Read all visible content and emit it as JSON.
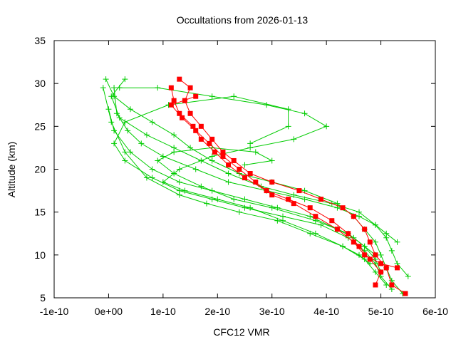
{
  "chart_data": {
    "type": "line",
    "title": "Occultations from 2026-01-13",
    "xlabel": "CFC12 VMR",
    "ylabel": "Altitude (km)",
    "xlim": [
      -1e-10,
      6e-10
    ],
    "ylim": [
      5,
      35
    ],
    "x_ticks": [
      {
        "value": -1e-10,
        "label": "-1e-10"
      },
      {
        "value": 0,
        "label": "0e+00"
      },
      {
        "value": 1e-10,
        "label": "1e-10"
      },
      {
        "value": 2e-10,
        "label": "2e-10"
      },
      {
        "value": 3e-10,
        "label": "3e-10"
      },
      {
        "value": 4e-10,
        "label": "4e-10"
      },
      {
        "value": 5e-10,
        "label": "5e-10"
      },
      {
        "value": 6e-10,
        "label": "6e-10"
      }
    ],
    "y_ticks": [
      {
        "value": 5,
        "label": "5"
      },
      {
        "value": 10,
        "label": "10"
      },
      {
        "value": 15,
        "label": "15"
      },
      {
        "value": 20,
        "label": "20"
      },
      {
        "value": 25,
        "label": "25"
      },
      {
        "value": 30,
        "label": "30"
      },
      {
        "value": 35,
        "label": "35"
      }
    ],
    "colors": {
      "green": "#00cc00",
      "red": "#ff0000",
      "axis": "#000000"
    },
    "series": [
      {
        "name": "profile-1",
        "color": "green",
        "marker": "plus",
        "x": [
          5.4e-10,
          5.2e-10,
          5.1e-10,
          5e-10,
          4.9e-10,
          4.7e-10,
          4.5e-10,
          4.2e-10,
          3.6e-10,
          3e-10,
          2.4e-10,
          1.9e-10,
          1.5e-10,
          1.2e-10,
          8e-11,
          4e-11,
          1e-11,
          -5e-12
        ],
        "y": [
          5.5,
          7,
          8.5,
          10,
          11.5,
          13,
          14.5,
          16,
          17.5,
          18.5,
          19.5,
          21,
          22.5,
          24,
          25.5,
          27,
          28.5,
          30.5
        ]
      },
      {
        "name": "profile-2",
        "color": "green",
        "marker": "plus",
        "x": [
          5.5e-10,
          5.3e-10,
          5.2e-10,
          5.1e-10,
          4.9e-10,
          4.6e-10,
          4.1e-10,
          3.4e-10,
          2.8e-10,
          2.2e-10,
          1.7e-10,
          1.2e-10,
          7e-11,
          2e-11,
          5e-12,
          3e-11
        ],
        "y": [
          7.5,
          9,
          10.5,
          12,
          13.5,
          15,
          16,
          17,
          18,
          19.5,
          21,
          22.5,
          24,
          26,
          28.5,
          30.5
        ]
      },
      {
        "name": "profile-3",
        "color": "green",
        "marker": "plus",
        "x": [
          5.2e-10,
          5e-10,
          4.9e-10,
          4.7e-10,
          4.4e-10,
          3.9e-10,
          3.2e-10,
          2.5e-10,
          1.9e-10,
          1.3e-10,
          8e-11,
          3e-11,
          1e-11,
          3e-11,
          1.1e-10,
          2.3e-10,
          3.3e-10,
          3.3e-10,
          2.6e-10
        ],
        "y": [
          6,
          7.5,
          9,
          10.5,
          12,
          13.5,
          14.5,
          15.5,
          16.5,
          17.5,
          19,
          21,
          23,
          25.5,
          27.5,
          28.5,
          27,
          25,
          23
        ]
      },
      {
        "name": "profile-4",
        "color": "green",
        "marker": "plus",
        "x": [
          5e-10,
          4.9e-10,
          4.7e-10,
          4.4e-10,
          3.8e-10,
          3e-10,
          2.3e-10,
          1.7e-10,
          1.2e-10,
          9e-11,
          1.2e-10,
          1.9e-10,
          2.7e-10,
          3e-10,
          2.5e-10
        ],
        "y": [
          8,
          9.5,
          11,
          12.5,
          14,
          15.5,
          16.5,
          18,
          19.5,
          21,
          22,
          22.5,
          22,
          21,
          20.5
        ]
      },
      {
        "name": "profile-5",
        "color": "green",
        "marker": "plus",
        "x": [
          5.3e-10,
          5.1e-10,
          4.9e-10,
          4.6e-10,
          4.2e-10,
          3.6e-10,
          2.9e-10,
          2.2e-10,
          1.6e-10,
          1e-10,
          6e-11,
          3.5e-11,
          1.5e-11,
          1e-11
        ],
        "y": [
          11.5,
          12.5,
          13.5,
          14.5,
          15.5,
          16.5,
          17.5,
          18.5,
          20,
          21.5,
          23,
          24.5,
          26.5,
          29.5
        ]
      },
      {
        "name": "profile-6",
        "color": "green",
        "marker": "plus",
        "x": [
          4.8e-10,
          4.6e-10,
          4.3e-10,
          3.8e-10,
          3.2e-10,
          2.6e-10,
          2e-10,
          1.4e-10,
          1e-10,
          1.3e-10,
          1.9e-10,
          2.6e-10,
          3.4e-10,
          4e-10,
          3.6e-10,
          2.9e-10,
          1.9e-10,
          9e-11,
          2e-11
        ],
        "y": [
          9,
          10,
          11,
          12.5,
          14,
          15.5,
          16.5,
          17.5,
          18.5,
          20,
          21.5,
          22.5,
          23.5,
          25,
          26.5,
          27.5,
          28.5,
          29.5,
          29.5
        ]
      },
      {
        "name": "profile-7",
        "color": "green",
        "marker": "plus",
        "x": [
          4.9e-10,
          4.7e-10,
          4.5e-10,
          4.2e-10,
          3.7e-10,
          3.1e-10,
          2.5e-10,
          1.9e-10,
          1.3e-10,
          8e-11,
          4e-11,
          1e-11,
          0.0
        ],
        "y": [
          10,
          11,
          12,
          13,
          14.5,
          15.5,
          16.5,
          17.5,
          18.5,
          20,
          22,
          24.5,
          27
        ]
      },
      {
        "name": "profile-8",
        "color": "green",
        "marker": "plus",
        "x": [
          5.1e-10,
          4.9e-10,
          4.7e-10,
          4.3e-10,
          3.7e-10,
          3.1e-10,
          2.4e-10,
          1.8e-10,
          1.3e-10,
          7e-11,
          3e-11,
          5e-12,
          -1e-11
        ],
        "y": [
          6.5,
          8,
          9.5,
          11,
          12.5,
          14,
          15,
          16,
          17,
          19,
          22,
          25.5,
          29.5
        ]
      },
      {
        "name": "profile-red-1",
        "color": "red",
        "marker": "square",
        "x": [
          5.45e-10,
          5.2e-10,
          5.1e-10,
          4.9e-10,
          4.8e-10,
          4.7e-10,
          4.5e-10,
          4.3e-10,
          3.9e-10,
          3.5e-10,
          3e-10,
          2.6e-10,
          2.3e-10,
          2.1e-10,
          1.9e-10,
          1.7e-10,
          1.5e-10,
          1.4e-10,
          1.5e-10,
          1.3e-10
        ],
        "y": [
          5.5,
          6.5,
          8.5,
          10,
          11.5,
          13,
          14.5,
          15.5,
          16.5,
          17.5,
          18.5,
          19.5,
          21,
          22,
          23.5,
          25,
          26.5,
          28,
          29.5,
          30.5
        ]
      },
      {
        "name": "profile-red-2",
        "color": "red",
        "marker": "square",
        "x": [
          4.9e-10,
          5e-10,
          4.8e-10,
          4.6e-10,
          4.4e-10,
          4.1e-10,
          3.7e-10,
          3.3e-10,
          2.9e-10,
          2.5e-10,
          2.2e-10,
          1.95e-10,
          1.7e-10,
          1.55e-10,
          1.3e-10,
          1.2e-10,
          1.15e-10
        ],
        "y": [
          6.5,
          8,
          9.5,
          11,
          12.5,
          14,
          15.5,
          16.5,
          17.5,
          19,
          20.5,
          22,
          23.5,
          25,
          26.5,
          28,
          29.5
        ]
      },
      {
        "name": "profile-red-3",
        "color": "red",
        "marker": "square",
        "x": [
          5.3e-10,
          5e-10,
          4.7e-10,
          4.5e-10,
          4.2e-10,
          3.8e-10,
          3.4e-10,
          3e-10,
          2.7e-10,
          2.4e-10,
          2.1e-10,
          1.85e-10,
          1.6e-10,
          1.35e-10,
          1.15e-10,
          1.6e-10
        ],
        "y": [
          8.5,
          9,
          10,
          11.5,
          13,
          14.5,
          16,
          17,
          18.5,
          20,
          21.5,
          23,
          24.5,
          26,
          27.5,
          28.5
        ]
      }
    ]
  }
}
